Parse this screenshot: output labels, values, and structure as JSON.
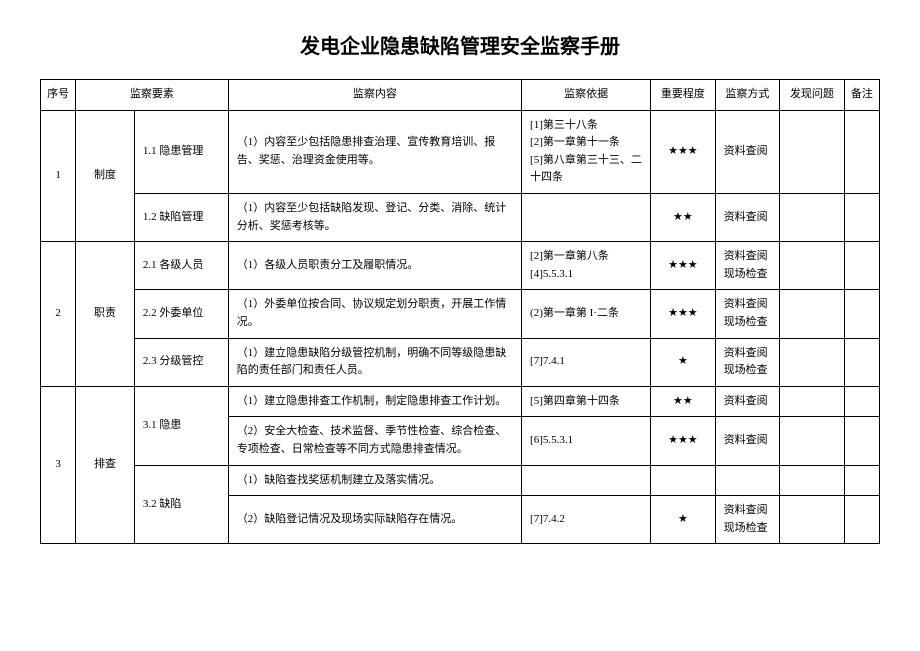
{
  "title": "发电企业隐患缺陷管理安全监察手册",
  "headers": {
    "index": "序号",
    "element": "监察要素",
    "content": "监察内容",
    "basis": "监察依据",
    "importance": "重要程度",
    "method": "监察方式",
    "problem": "发现问题",
    "remark": "备注"
  },
  "rows": [
    {
      "index": "1",
      "element1": "制度",
      "element2": "1.1 隐患管理",
      "content": "（1）内容至少包括隐患排查治理、宣传教育培训、报告、奖惩、治理资金使用等。",
      "basis": "[1]第三十八条\n[2]第一章第十一条\n[5]第八章第三十三、二十四条",
      "importance": "★★★",
      "method": "资料查阅"
    },
    {
      "element2": "1.2 缺陷管理",
      "content": "（1）内容至少包括缺陷发现、登记、分类、消除、统计分析、奖惩考核等。",
      "basis": "",
      "importance": "★★",
      "method": "资料查阅"
    },
    {
      "index": "2",
      "element1": "职责",
      "element2": "2.1 各级人员",
      "content": "（1）各级人员职责分工及履职情况。",
      "basis": "[2]第一章第八条\n[4]5.5.3.1",
      "importance": "★★★",
      "method": "资料查阅现场检查"
    },
    {
      "element2": "2.2 外委单位",
      "content": "（1）外委单位按合同、协议规定划分职责，开展工作情况。",
      "basis": "(2)第一章第 I·二条",
      "importance": "★★★",
      "method": "资料查阅现场检查"
    },
    {
      "element2": "2.3 分级管控",
      "content": "（1）建立隐患缺陷分级管控机制，明确不同等级隐患缺陷的责任部门和责任人员。",
      "basis": "[7]7.4.1",
      "importance": "★",
      "method": "资料查阅现场检查"
    },
    {
      "index": "3",
      "element1": "排查",
      "element2_a": "3.1 隐患",
      "content_a1": "（1）建立隐患排查工作机制，制定隐患排查工作计划。",
      "basis_a1": "[5]第四章第十四条",
      "importance_a1": "★★",
      "method_a1": "资料查阅",
      "content_a2": "（2）安全大检查、技术监督、季节性检查、综合检查、专项检查、日常检查等不同方式隐患排查情况。",
      "basis_a2": "[6]5.5.3.1",
      "importance_a2": "★★★",
      "method_a2": "资料查阅",
      "element2_b": "3.2 缺陷",
      "content_b1": "（1）缺陷查找奖惩机制建立及落实情况。",
      "basis_b1": "",
      "importance_b1": "",
      "method_b1": "",
      "content_b2": "（2）缺陷登记情况及现场实际缺陷存在情况。",
      "basis_b2": "[7]7.4.2",
      "importance_b2": "★",
      "method_b2": "资料查阅现场检查"
    }
  ]
}
